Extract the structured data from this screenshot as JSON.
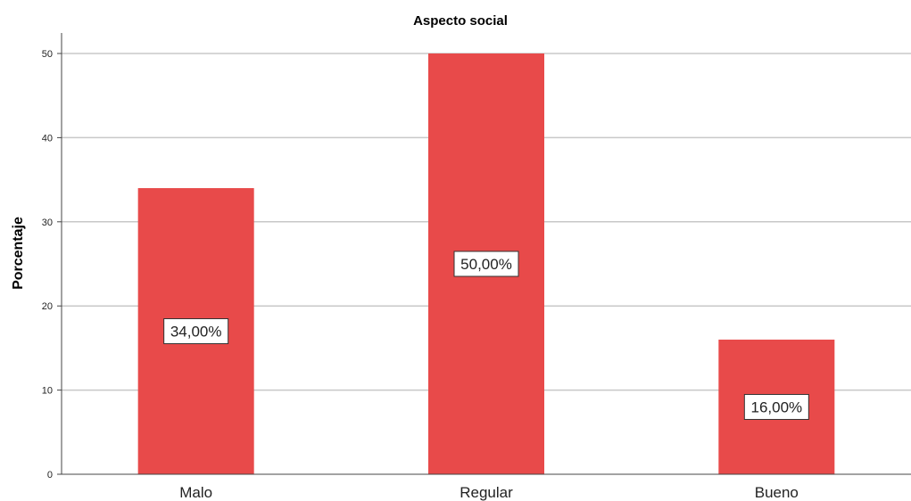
{
  "chart_data": {
    "type": "bar",
    "title": "Aspecto social",
    "xlabel": "",
    "ylabel": "Porcentaje",
    "categories": [
      "Malo",
      "Regular",
      "Bueno"
    ],
    "values": [
      34,
      50,
      16
    ],
    "data_labels": [
      "34,00%",
      "50,00%",
      "16,00%"
    ],
    "ylim": [
      0,
      50
    ],
    "yticks": [
      "0",
      "10",
      "20",
      "30",
      "40",
      "50"
    ],
    "grid": true,
    "bar_color": "#e84a4a",
    "grid_color": "#c8c8c8"
  }
}
